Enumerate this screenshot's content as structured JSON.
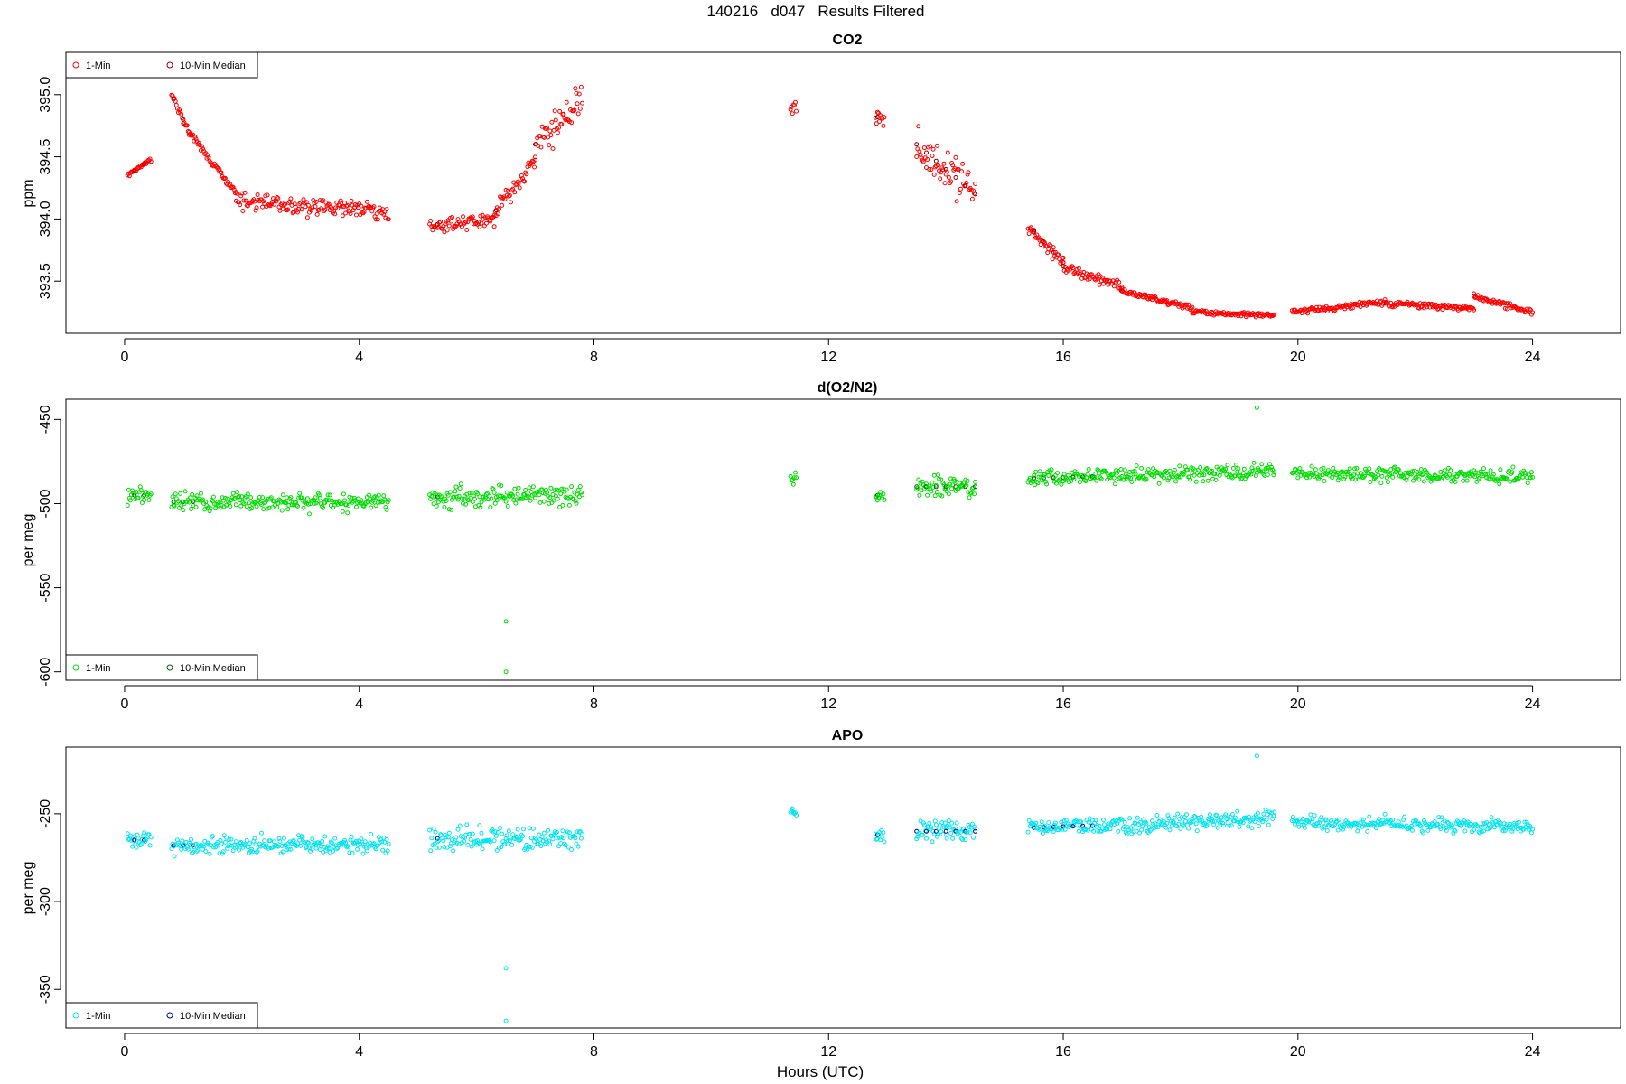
{
  "figure_title": "140216   d047   Results Filtered",
  "x_axis_label": "Hours (UTC)",
  "chart_data": [
    {
      "type": "scatter",
      "title": "CO2",
      "xlabel": "",
      "ylabel": "ppm",
      "xlim": [
        -1.0,
        25.5
      ],
      "ylim": [
        393.08,
        395.34
      ],
      "x_ticks": [
        0,
        4,
        8,
        12,
        16,
        20,
        24
      ],
      "y_ticks": [
        393.5,
        394.0,
        394.5,
        395.0
      ],
      "y_tick_labels": [
        "393.5",
        "394.0",
        "394.5",
        "395.0"
      ],
      "grid": false,
      "legend_position": "top-left",
      "segments": [
        {
          "x": [
            0.05,
            0.45
          ],
          "y": [
            394.35,
            394.48
          ],
          "noise": 0.03
        },
        {
          "x": [
            0.8,
            1.1
          ],
          "y": [
            395.0,
            394.7
          ],
          "noise": 0.06
        },
        {
          "x": [
            1.1,
            1.9
          ],
          "y": [
            394.7,
            394.2
          ],
          "noise": 0.07
        },
        {
          "x": [
            1.9,
            4.5
          ],
          "y": [
            394.15,
            394.05
          ],
          "noise": 0.12
        },
        {
          "x": [
            5.2,
            6.3
          ],
          "y": [
            393.95,
            394.0
          ],
          "noise": 0.1
        },
        {
          "x": [
            6.3,
            7.0
          ],
          "y": [
            394.05,
            394.5
          ],
          "noise": 0.15
        },
        {
          "x": [
            7.0,
            7.8
          ],
          "y": [
            394.6,
            394.95
          ],
          "noise": 0.25
        },
        {
          "x": [
            11.35,
            11.45
          ],
          "y": [
            394.9,
            394.9
          ],
          "noise": 0.12
        },
        {
          "x": [
            12.8,
            12.95
          ],
          "y": [
            394.82,
            394.82
          ],
          "noise": 0.1
        },
        {
          "x": [
            13.5,
            14.5
          ],
          "y": [
            394.6,
            394.2
          ],
          "noise": 0.3
        },
        {
          "x": [
            15.4,
            16.0
          ],
          "y": [
            393.95,
            393.65
          ],
          "noise": 0.1
        },
        {
          "x": [
            16.0,
            17.0
          ],
          "y": [
            393.62,
            393.45
          ],
          "noise": 0.07
        },
        {
          "x": [
            17.0,
            18.2
          ],
          "y": [
            393.42,
            393.28
          ],
          "noise": 0.04
        },
        {
          "x": [
            18.2,
            19.6
          ],
          "y": [
            393.25,
            393.22
          ],
          "noise": 0.03
        },
        {
          "x": [
            19.9,
            21.5
          ],
          "y": [
            393.25,
            393.33
          ],
          "noise": 0.04
        },
        {
          "x": [
            21.5,
            23.0
          ],
          "y": [
            393.32,
            393.28
          ],
          "noise": 0.04
        },
        {
          "x": [
            23.0,
            24.0
          ],
          "y": [
            393.38,
            393.25
          ],
          "noise": 0.05
        }
      ],
      "series": [
        {
          "name": "1-Min",
          "color": "#ff0000"
        },
        {
          "name": "10-Min Median",
          "color": "#8b0000"
        }
      ]
    },
    {
      "type": "scatter",
      "title": "d(O2/N2)",
      "xlabel": "",
      "ylabel": "per meg",
      "xlim": [
        -1.0,
        25.5
      ],
      "ylim": [
        -605,
        -438
      ],
      "x_ticks": [
        0,
        4,
        8,
        12,
        16,
        20,
        24
      ],
      "y_ticks": [
        -600,
        -550,
        -500,
        -450
      ],
      "y_tick_labels": [
        "-600",
        "-550",
        "-500",
        "-450"
      ],
      "grid": false,
      "legend_position": "bottom-left",
      "segments": [
        {
          "x": [
            0.05,
            0.45
          ],
          "y": [
            -495,
            -495
          ],
          "noise": 9
        },
        {
          "x": [
            0.8,
            4.5
          ],
          "y": [
            -499,
            -499
          ],
          "noise": 9
        },
        {
          "x": [
            5.2,
            7.8
          ],
          "y": [
            -496,
            -496
          ],
          "noise": 11
        },
        {
          "x": [
            11.35,
            11.45
          ],
          "y": [
            -485,
            -485
          ],
          "noise": 6
        },
        {
          "x": [
            12.8,
            12.95
          ],
          "y": [
            -495,
            -495
          ],
          "noise": 8
        },
        {
          "x": [
            13.5,
            14.5
          ],
          "y": [
            -490,
            -490
          ],
          "noise": 11
        },
        {
          "x": [
            15.4,
            19.6
          ],
          "y": [
            -485,
            -481
          ],
          "noise": 8
        },
        {
          "x": [
            19.9,
            24.0
          ],
          "y": [
            -482,
            -484
          ],
          "noise": 7
        }
      ],
      "outliers": [
        {
          "x": 6.5,
          "y": -570
        },
        {
          "x": 6.5,
          "y": -600
        },
        {
          "x": 19.3,
          "y": -443
        }
      ],
      "series": [
        {
          "name": "1-Min",
          "color": "#00dd00"
        },
        {
          "name": "10-Min Median",
          "color": "#006400"
        }
      ]
    },
    {
      "type": "scatter",
      "title": "APO",
      "xlabel": "Hours (UTC)",
      "ylabel": "per meg",
      "xlim": [
        -1.0,
        25.5
      ],
      "ylim": [
        -372,
        -212
      ],
      "x_ticks": [
        0,
        4,
        8,
        12,
        16,
        20,
        24
      ],
      "y_ticks": [
        -350,
        -300,
        -250
      ],
      "y_tick_labels": [
        "-350",
        "-300",
        "-250"
      ],
      "grid": false,
      "legend_position": "bottom-left",
      "segments": [
        {
          "x": [
            0.05,
            0.45
          ],
          "y": [
            -265,
            -265
          ],
          "noise": 9
        },
        {
          "x": [
            0.8,
            4.5
          ],
          "y": [
            -268,
            -268
          ],
          "noise": 9
        },
        {
          "x": [
            5.2,
            7.8
          ],
          "y": [
            -264,
            -264
          ],
          "noise": 11
        },
        {
          "x": [
            11.35,
            11.45
          ],
          "y": [
            -250,
            -250
          ],
          "noise": 6
        },
        {
          "x": [
            12.8,
            12.95
          ],
          "y": [
            -262,
            -262
          ],
          "noise": 8
        },
        {
          "x": [
            13.5,
            14.5
          ],
          "y": [
            -260,
            -260
          ],
          "noise": 11
        },
        {
          "x": [
            15.4,
            19.6
          ],
          "y": [
            -258,
            -253
          ],
          "noise": 8
        },
        {
          "x": [
            19.9,
            24.0
          ],
          "y": [
            -255,
            -257
          ],
          "noise": 7
        }
      ],
      "outliers": [
        {
          "x": 6.5,
          "y": -338
        },
        {
          "x": 6.5,
          "y": -368
        },
        {
          "x": 19.3,
          "y": -217
        }
      ],
      "series": [
        {
          "name": "1-Min",
          "color": "#00e5ee"
        },
        {
          "name": "10-Min Median",
          "color": "#00008b"
        }
      ]
    }
  ]
}
